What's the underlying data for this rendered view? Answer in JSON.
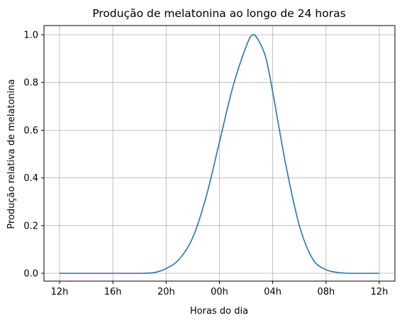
{
  "chart_data": {
    "type": "line",
    "title": "Produção de melatonina ao longo de 24 horas",
    "xlabel": "Horas do dia",
    "ylabel": "Produção relativa de melatonina",
    "x_unit": "hours",
    "xlim": [
      12,
      36
    ],
    "ylim": [
      0,
      1.0
    ],
    "x_ticks": [
      {
        "value": 12,
        "label": "12h"
      },
      {
        "value": 16,
        "label": "16h"
      },
      {
        "value": 20,
        "label": "20h"
      },
      {
        "value": 24,
        "label": "00h"
      },
      {
        "value": 28,
        "label": "04h"
      },
      {
        "value": 32,
        "label": "08h"
      },
      {
        "value": 36,
        "label": "12h"
      }
    ],
    "y_ticks": [
      {
        "value": 0.0,
        "label": "0.0"
      },
      {
        "value": 0.2,
        "label": "0.2"
      },
      {
        "value": 0.4,
        "label": "0.4"
      },
      {
        "value": 0.6,
        "label": "0.6"
      },
      {
        "value": 0.8,
        "label": "0.8"
      },
      {
        "value": 1.0,
        "label": "1.0"
      }
    ],
    "grid": true,
    "series": [
      {
        "color": "#1f77b4",
        "x": [
          12,
          14,
          16,
          18,
          19,
          20,
          21,
          22,
          23,
          24,
          25,
          26,
          26.5,
          27,
          27.5,
          28,
          29,
          30,
          31,
          32,
          33,
          34,
          36
        ],
        "y": [
          0.0,
          0.0,
          0.0,
          0.0,
          0.002,
          0.02,
          0.06,
          0.15,
          0.32,
          0.55,
          0.78,
          0.95,
          1.0,
          0.97,
          0.9,
          0.76,
          0.45,
          0.2,
          0.06,
          0.015,
          0.003,
          0.0,
          0.0
        ]
      }
    ]
  }
}
